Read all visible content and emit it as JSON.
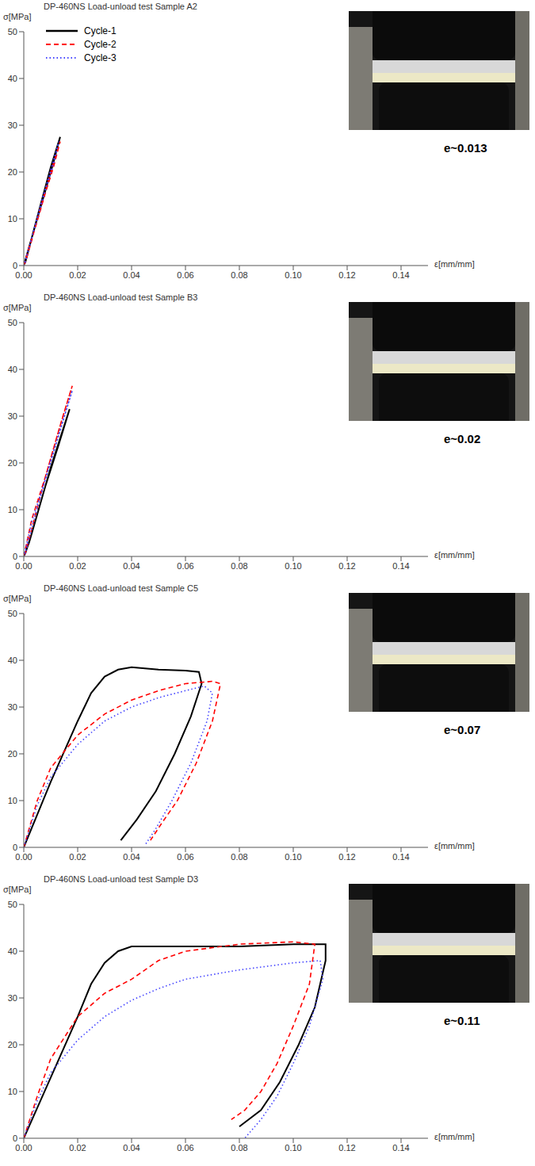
{
  "chart_data": [
    {
      "type": "line",
      "title": "DP-460NS Load-unload test Sample A2",
      "x_label": "ε[mm/mm]",
      "y_label": "σ[MPa]",
      "annotation": "e~0.013",
      "legend": "upper left",
      "xlim": [
        0,
        0.15
      ],
      "xticks": [
        {
          "value": 0,
          "label": "0.00"
        },
        {
          "value": 0.02,
          "label": "0.02"
        },
        {
          "value": 0.04,
          "label": "0.04"
        },
        {
          "value": 0.06,
          "label": "0.06"
        },
        {
          "value": 0.08,
          "label": "0.08"
        },
        {
          "value": 0.1,
          "label": "0.10"
        },
        {
          "value": 0.12,
          "label": "0.12"
        },
        {
          "value": 0.14,
          "label": "0.14"
        }
      ],
      "ylim": [
        0,
        50
      ],
      "yticks": [
        0,
        10,
        20,
        30,
        40,
        50
      ],
      "series": [
        {
          "name": "Cycle-1",
          "color": "#000000",
          "line_style": "solid",
          "x": [
            0,
            0.002,
            0.005,
            0.008,
            0.011,
            0.0135,
            0.01,
            0.006,
            0.003,
            0.0005
          ],
          "values": [
            0,
            4,
            10,
            16,
            22,
            27.5,
            21,
            12.5,
            6,
            0.5
          ]
        },
        {
          "name": "Cycle-2",
          "color": "#ff0000",
          "line_style": "dashed",
          "x": [
            0,
            0.002,
            0.005,
            0.008,
            0.011,
            0.0135,
            0.01,
            0.006,
            0.003,
            0.0005
          ],
          "values": [
            0,
            4,
            9.5,
            15.5,
            21,
            26.5,
            20,
            12,
            5.5,
            0.5
          ]
        },
        {
          "name": "Cycle-3",
          "color": "#4444ff",
          "line_style": "dotted",
          "x": [
            0,
            0.002,
            0.005,
            0.008,
            0.011,
            0.013,
            0.01,
            0.006,
            0.003,
            0.0005
          ],
          "values": [
            0,
            4,
            10,
            16,
            21.5,
            26.5,
            20.5,
            12.5,
            6,
            0.5
          ]
        }
      ]
    },
    {
      "type": "line",
      "title": "DP-460NS Load-unload test Sample B3",
      "x_label": "ε[mm/mm]",
      "y_label": "σ[MPa]",
      "annotation": "e~0.02",
      "xlim": [
        0,
        0.15
      ],
      "xticks": [
        {
          "value": 0,
          "label": "0.00"
        },
        {
          "value": 0.02,
          "label": "0.02"
        },
        {
          "value": 0.04,
          "label": "0.04"
        },
        {
          "value": 0.06,
          "label": "0.06"
        },
        {
          "value": 0.08,
          "label": "0.08"
        },
        {
          "value": 0.1,
          "label": "0.10"
        },
        {
          "value": 0.12,
          "label": "0.12"
        },
        {
          "value": 0.14,
          "label": "0.14"
        }
      ],
      "ylim": [
        0,
        50
      ],
      "yticks": [
        0,
        10,
        20,
        30,
        40,
        50
      ],
      "series": [
        {
          "name": "Cycle-1",
          "color": "#000000",
          "line_style": "solid",
          "x": [
            0,
            0.002,
            0.004,
            0.01,
            0.017,
            0.013,
            0.008,
            0.003,
            0.0005
          ],
          "values": [
            0,
            3,
            7,
            19,
            31.5,
            24,
            15,
            5,
            0.5
          ]
        },
        {
          "name": "Cycle-2",
          "color": "#ff0000",
          "line_style": "dashed",
          "x": [
            0,
            0.003,
            0.008,
            0.013,
            0.018,
            0.014,
            0.008,
            0.003,
            0.0005
          ],
          "values": [
            0,
            8,
            17,
            27,
            36.5,
            29,
            17,
            6,
            0.5
          ]
        },
        {
          "name": "Cycle-3",
          "color": "#4444ff",
          "line_style": "dotted",
          "x": [
            0,
            0.003,
            0.008,
            0.013,
            0.018,
            0.014,
            0.008,
            0.003,
            0.0005
          ],
          "values": [
            0,
            7.5,
            16.5,
            26,
            35.5,
            28,
            16.5,
            6,
            0.5
          ]
        }
      ]
    },
    {
      "type": "line",
      "title": "DP-460NS Load-unload test Sample C5",
      "x_label": "ε[mm/mm]",
      "y_label": "σ[MPa]",
      "annotation": "e~0.07",
      "xlim": [
        0,
        0.15
      ],
      "xticks": [
        {
          "value": 0,
          "label": "0.00"
        },
        {
          "value": 0.02,
          "label": "0.02"
        },
        {
          "value": 0.04,
          "label": "0.04"
        },
        {
          "value": 0.06,
          "label": "0.06"
        },
        {
          "value": 0.08,
          "label": "0.08"
        },
        {
          "value": 0.1,
          "label": "0.10"
        },
        {
          "value": 0.12,
          "label": "0.12"
        },
        {
          "value": 0.14,
          "label": "0.14"
        }
      ],
      "ylim": [
        0,
        50
      ],
      "yticks": [
        0,
        10,
        20,
        30,
        40,
        50
      ],
      "series": [
        {
          "name": "Cycle-1",
          "color": "#000000",
          "line_style": "solid",
          "x": [
            0,
            0.01,
            0.02,
            0.025,
            0.03,
            0.035,
            0.04,
            0.05,
            0.06,
            0.065,
            0.066,
            0.062,
            0.056,
            0.049,
            0.042,
            0.036
          ],
          "values": [
            0,
            14,
            27,
            33,
            36.5,
            38,
            38.5,
            38,
            37.8,
            37.5,
            35,
            28,
            20,
            12,
            6,
            1.5
          ]
        },
        {
          "name": "Cycle-2",
          "color": "#ff0000",
          "line_style": "dashed",
          "x": [
            0,
            0.005,
            0.01,
            0.02,
            0.03,
            0.04,
            0.05,
            0.06,
            0.07,
            0.073,
            0.07,
            0.064,
            0.057,
            0.051,
            0.047
          ],
          "values": [
            0,
            10,
            17,
            24,
            28.5,
            31.5,
            33.5,
            35,
            35.5,
            35,
            27,
            18,
            10,
            5,
            1.5
          ]
        },
        {
          "name": "Cycle-3",
          "color": "#4444ff",
          "line_style": "dotted",
          "x": [
            0,
            0.005,
            0.01,
            0.02,
            0.03,
            0.04,
            0.05,
            0.06,
            0.067,
            0.07,
            0.068,
            0.062,
            0.055,
            0.049,
            0.045
          ],
          "values": [
            0,
            9,
            15,
            22,
            27,
            30,
            32,
            33.5,
            34.5,
            33,
            27,
            18,
            10,
            4,
            0.5
          ]
        }
      ]
    },
    {
      "type": "line",
      "title": "DP-460NS Load-unload test Sample D3",
      "x_label": "ε[mm/mm]",
      "y_label": "σ[MPa]",
      "annotation": "e~0.11",
      "xlim": [
        0,
        0.15
      ],
      "xticks": [
        {
          "value": 0,
          "label": "0.00"
        },
        {
          "value": 0.02,
          "label": "0.02"
        },
        {
          "value": 0.04,
          "label": "0.04"
        },
        {
          "value": 0.06,
          "label": "0.06"
        },
        {
          "value": 0.08,
          "label": "0.08"
        },
        {
          "value": 0.1,
          "label": "0.10"
        },
        {
          "value": 0.12,
          "label": "0.12"
        },
        {
          "value": 0.14,
          "label": "0.14"
        }
      ],
      "ylim": [
        0,
        50
      ],
      "yticks": [
        0,
        10,
        20,
        30,
        40,
        50
      ],
      "series": [
        {
          "name": "Cycle-1",
          "color": "#000000",
          "line_style": "solid",
          "x": [
            0,
            0.01,
            0.02,
            0.025,
            0.03,
            0.035,
            0.04,
            0.06,
            0.08,
            0.1,
            0.112,
            0.112,
            0.108,
            0.102,
            0.095,
            0.088,
            0.08
          ],
          "values": [
            0,
            13,
            26,
            33,
            37.5,
            40,
            41,
            41,
            41,
            41.5,
            41.5,
            38,
            28,
            20,
            12,
            6,
            2.5
          ]
        },
        {
          "name": "Cycle-2",
          "color": "#ff0000",
          "line_style": "dashed",
          "x": [
            0,
            0.005,
            0.01,
            0.02,
            0.03,
            0.04,
            0.05,
            0.06,
            0.08,
            0.1,
            0.108,
            0.106,
            0.1,
            0.094,
            0.088,
            0.082,
            0.077
          ],
          "values": [
            0,
            9,
            17,
            26,
            31,
            34,
            38,
            40,
            41.5,
            42,
            41.5,
            33,
            24,
            16,
            10,
            6,
            4
          ]
        },
        {
          "name": "Cycle-3",
          "color": "#4444ff",
          "line_style": "dotted",
          "x": [
            0,
            0.005,
            0.01,
            0.02,
            0.03,
            0.04,
            0.05,
            0.06,
            0.08,
            0.1,
            0.11,
            0.111,
            0.106,
            0.1,
            0.094,
            0.088,
            0.082
          ],
          "values": [
            0,
            8,
            14,
            21,
            26,
            29.5,
            32,
            34,
            36,
            37.5,
            38,
            34,
            24,
            16,
            9,
            4,
            0
          ]
        }
      ]
    }
  ]
}
